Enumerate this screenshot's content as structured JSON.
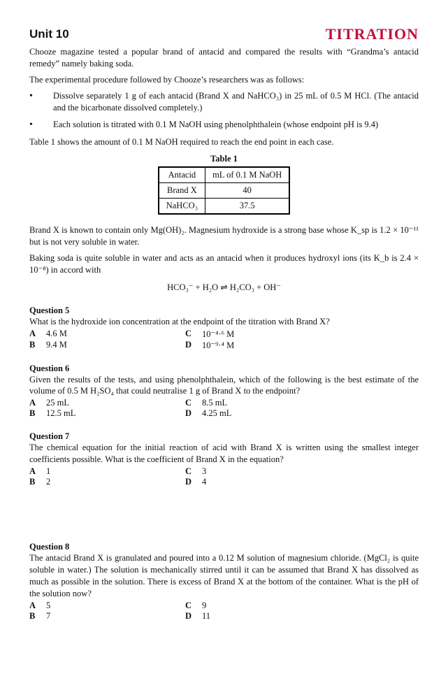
{
  "header": {
    "unit_title": "Unit 10",
    "hand_annotation": "TITRATION"
  },
  "intro": {
    "p1": "Chooze magazine tested a popular brand of antacid and compared the results with “Grandma’s antacid remedy” namely baking soda.",
    "p2": "The experimental procedure followed by Chooze’s researchers was as follows:",
    "bullets": [
      "Dissolve separately 1 g of each antacid (Brand X and NaHCO₃) in 25 mL of 0.5 M HCl. (The antacid and the bicarbonate dissolved completely.)",
      "Each solution is titrated with 0.1 M NaOH using phenolphthalein (whose endpoint pH is 9.4)"
    ],
    "p3": "Table 1 shows the amount of 0.1 M NaOH required to reach the end point in each case."
  },
  "table1": {
    "caption": "Table 1",
    "col1_header": "Antacid",
    "col2_header": "mL of 0.1 M NaOH",
    "rows": [
      {
        "c1": "Brand X",
        "c2": "40"
      },
      {
        "c1": "NaHCO₃",
        "c2": "37.5"
      }
    ]
  },
  "middle": {
    "p1": "Brand X is known to contain only Mg(OH)₂. Magnesium hydroxide is a strong base whose K_sp is 1.2 × 10⁻¹¹ but is not very soluble in water.",
    "p2": "Baking soda is quite soluble in water and acts as an antacid when it produces hydroxyl ions (its K_b is 2.4 × 10⁻⁸) in accord with",
    "eqn": "HCO₃⁻ + H₂O ⇌ H₂CO₃ + OH⁻"
  },
  "questions": {
    "q5": {
      "head": "Question 5",
      "text": "What is the hydroxide ion concentration at the endpoint of the titration with Brand X?",
      "A": "4.6 M",
      "B": "9.4 M",
      "C": "10⁻⁴·⁶ M",
      "D": "10⁻⁹·⁴ M"
    },
    "q6": {
      "head": "Question 6",
      "text": "Given the results of the tests, and using phenolphthalein, which of the following is the best estimate of the volume of 0.5 M H₂SO₄ that could neutralise 1 g of Brand X to the endpoint?",
      "A": "25 mL",
      "B": "12.5 mL",
      "C": "8.5 mL",
      "D": "4.25 mL"
    },
    "q7": {
      "head": "Question 7",
      "text": "The chemical equation for the initial reaction of acid with Brand X is written using the smallest integer coefficients possible. What is the coefficient of Brand X in the equation?",
      "A": "1",
      "B": "2",
      "C": "3",
      "D": "4"
    },
    "q8": {
      "head": "Question 8",
      "text": "The antacid Brand X is granulated and poured into a 0.12 M solution of magnesium chloride. (MgCl₂ is quite soluble in water.) The solution is mechanically stirred until it can be assumed that Brand X has dissolved as much as possible in the solution. There is excess of Brand X at the bottom of the container. What is the pH of the solution now?",
      "A": "5",
      "B": "7",
      "C": "9",
      "D": "11"
    }
  }
}
